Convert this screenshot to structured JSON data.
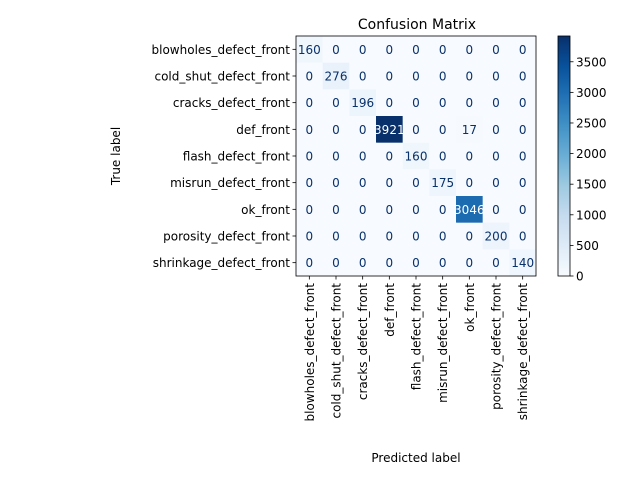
{
  "chart_data": {
    "type": "heatmap",
    "title": "Confusion Matrix",
    "xlabel": "Predicted label",
    "ylabel": "True label",
    "labels": [
      "blowholes_defect_front",
      "cold_shut_defect_front",
      "cracks_defect_front",
      "def_front",
      "flash_defect_front",
      "misrun_defect_front",
      "ok_front",
      "porosity_defect_front",
      "shrinkage_defect_front"
    ],
    "matrix": [
      [
        160,
        0,
        0,
        0,
        0,
        0,
        0,
        0,
        0
      ],
      [
        0,
        276,
        0,
        0,
        0,
        0,
        0,
        0,
        0
      ],
      [
        0,
        0,
        196,
        0,
        0,
        0,
        0,
        0,
        0
      ],
      [
        0,
        0,
        0,
        3921,
        0,
        0,
        17,
        0,
        0
      ],
      [
        0,
        0,
        0,
        0,
        160,
        0,
        0,
        0,
        0
      ],
      [
        0,
        0,
        0,
        0,
        0,
        175,
        0,
        0,
        0
      ],
      [
        0,
        0,
        0,
        0,
        0,
        0,
        3046,
        0,
        0
      ],
      [
        0,
        0,
        0,
        0,
        0,
        0,
        0,
        200,
        0
      ],
      [
        0,
        0,
        0,
        0,
        0,
        0,
        0,
        0,
        140
      ]
    ],
    "colormap": "Blues",
    "vmin": 0,
    "vmax": 3921,
    "colorbar_ticks": [
      0,
      500,
      1000,
      1500,
      2000,
      2500,
      3000,
      3500
    ]
  }
}
